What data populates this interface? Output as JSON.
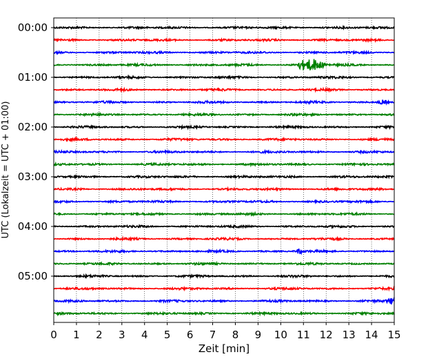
{
  "chart_data": {
    "type": "line",
    "title": "",
    "xlabel": "Zeit  [min]",
    "ylabel": "UTC (Lokalzeit = UTC + 01:00)",
    "xlim": [
      0,
      15
    ],
    "x_ticks": [
      "0",
      "1",
      "2",
      "3",
      "4",
      "5",
      "6",
      "7",
      "8",
      "9",
      "10",
      "11",
      "12",
      "13",
      "14",
      "15"
    ],
    "y_ticks": [
      "00:00",
      "01:00",
      "02:00",
      "03:00",
      "04:00",
      "05:00"
    ],
    "grid": "vertical dotted at each minute",
    "trace_minutes": 15,
    "trace_count": 24,
    "trace_colors": [
      "#000000",
      "#ff0000",
      "#0000ff",
      "#008000"
    ],
    "events": [
      {
        "row": 3,
        "minute": 11.4,
        "amplitude": 8,
        "width": 0.45
      },
      {
        "row": 3,
        "minute": 10.9,
        "amplitude": 3.5,
        "width": 0.15
      },
      {
        "row": 6,
        "minute": 14.5,
        "amplitude": 3,
        "width": 0.2
      },
      {
        "row": 22,
        "minute": 14.9,
        "amplitude": 4,
        "width": 0.2
      },
      {
        "row": 18,
        "minute": 10.8,
        "amplitude": 3,
        "width": 0.15
      }
    ]
  }
}
